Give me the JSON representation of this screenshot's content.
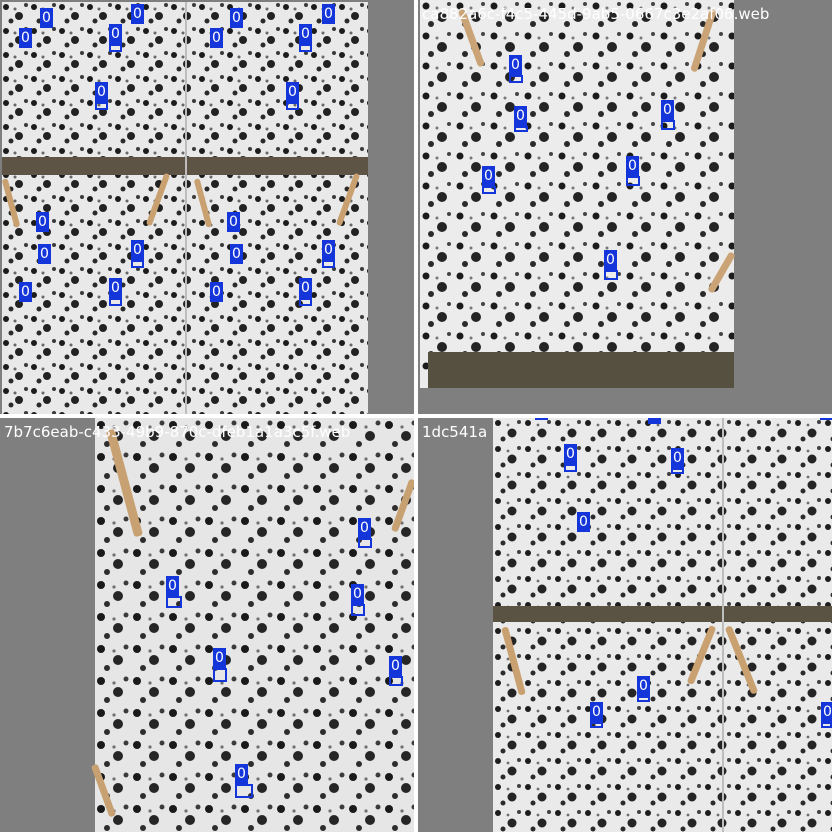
{
  "detection_color": "#1435d9",
  "letterbox_color": "#7f7f7f",
  "tiles": [
    {
      "filename": "",
      "detections": [
        {
          "label": "0"
        },
        {
          "label": "0"
        },
        {
          "label": "0"
        },
        {
          "label": "0"
        },
        {
          "label": "0"
        },
        {
          "label": "0"
        },
        {
          "label": "0"
        },
        {
          "label": "0"
        },
        {
          "label": "0"
        },
        {
          "label": "0"
        },
        {
          "label": "0"
        },
        {
          "label": "0"
        },
        {
          "label": "0"
        },
        {
          "label": "0"
        },
        {
          "label": "0"
        },
        {
          "label": "0"
        },
        {
          "label": "0"
        },
        {
          "label": "0"
        },
        {
          "label": "0"
        },
        {
          "label": "0"
        }
      ]
    },
    {
      "filename": "ca882a6c-f4c5-445d-9ab5-0667c3e2af06.web",
      "detections": [
        {
          "label": "0"
        },
        {
          "label": "0"
        },
        {
          "label": "0"
        },
        {
          "label": "0"
        },
        {
          "label": "0"
        },
        {
          "label": "0"
        }
      ]
    },
    {
      "filename": "7b7c6eab-c433-49b9-870c-dfeb1a1a3c5f.web",
      "detections": [
        {
          "label": "0"
        },
        {
          "label": "0"
        },
        {
          "label": "0"
        },
        {
          "label": "0"
        },
        {
          "label": "0"
        },
        {
          "label": "0"
        }
      ]
    },
    {
      "filename": "1dc541a",
      "detections": [
        {
          "label": "0"
        },
        {
          "label": "0"
        },
        {
          "label": "0"
        },
        {
          "label": "0"
        },
        {
          "label": "0"
        },
        {
          "label": "0"
        },
        {
          "label": "0"
        },
        {
          "label": "0"
        },
        {
          "label": "0"
        },
        {
          "label": "0"
        }
      ]
    }
  ]
}
